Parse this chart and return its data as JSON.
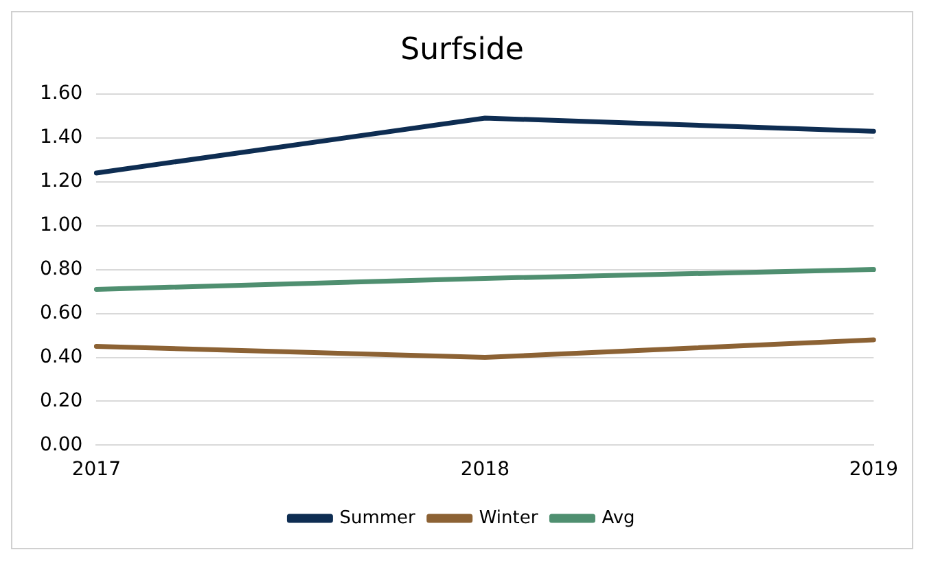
{
  "chart_data": {
    "type": "line",
    "title": "Surfside",
    "categories": [
      "2017",
      "2018",
      "2019"
    ],
    "series": [
      {
        "name": "Summer",
        "color": "#0e2d52",
        "values": [
          1.24,
          1.49,
          1.43
        ]
      },
      {
        "name": "Winter",
        "color": "#8c6234",
        "values": [
          0.45,
          0.4,
          0.48
        ]
      },
      {
        "name": "Avg",
        "color": "#4f8f70",
        "values": [
          0.71,
          0.76,
          0.8
        ]
      }
    ],
    "ylim": [
      0,
      1.6
    ],
    "yticks": [
      {
        "value": 0,
        "label": "0.00"
      },
      {
        "value": 0.2,
        "label": "0.20"
      },
      {
        "value": 0.4,
        "label": "0.40"
      },
      {
        "value": 0.6,
        "label": "0.60"
      },
      {
        "value": 0.8,
        "label": "0.80"
      },
      {
        "value": 1,
        "label": "1.00"
      },
      {
        "value": 1.2,
        "label": "1.20"
      },
      {
        "value": 1.4,
        "label": "1.40"
      },
      {
        "value": 1.6,
        "label": "1.60"
      }
    ],
    "grid": "y",
    "legend": "bottom",
    "marker": "none",
    "line_style": "solid"
  }
}
